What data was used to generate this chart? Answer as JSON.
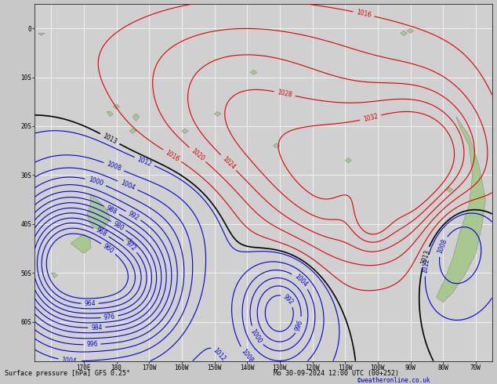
{
  "title": "Surface pressure [hPa] GFS 0.25°",
  "date_str": "Mo 30-09-2024 12:00 UTC (00+252)",
  "copyright": "©weatheronline.co.uk",
  "bg_color": "#c8c8c8",
  "ocean_color": "#d0d0d0",
  "land_color": "#a8c890",
  "blue_color": "#0000dd",
  "red_color": "#dd0000",
  "black_color": "#000000",
  "lon_min": 155,
  "lon_max": 295,
  "lat_min": -68,
  "lat_max": 5,
  "lon_ticks": [
    170,
    180,
    190,
    200,
    210,
    220,
    230,
    240,
    250,
    260,
    270,
    280,
    290
  ],
  "lon_labels": [
    "170E",
    "180",
    "170W",
    "160W",
    "150W",
    "140W",
    "130W",
    "120W",
    "110W",
    "100W",
    "90W",
    "80W",
    "70W"
  ],
  "lat_ticks": [
    0,
    -10,
    -20,
    -30,
    -40,
    -50,
    -60
  ],
  "lat_labels": [
    "0",
    "10S",
    "20S",
    "30S",
    "40S",
    "50S",
    "60S"
  ]
}
